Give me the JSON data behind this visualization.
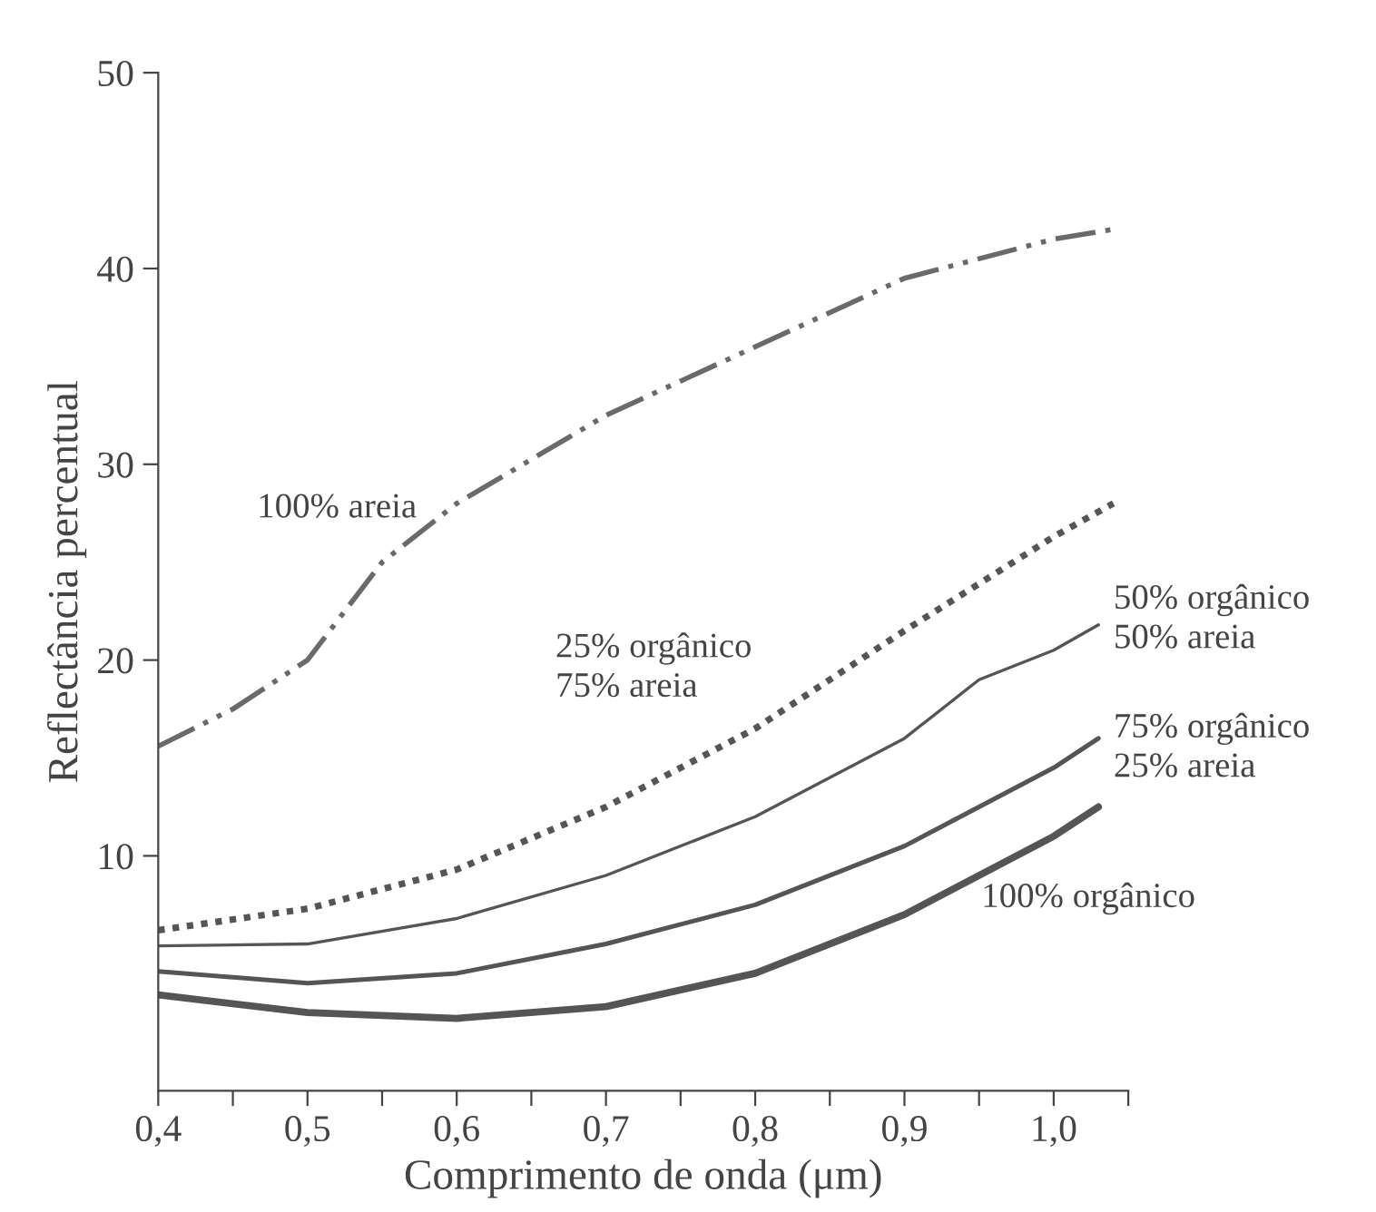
{
  "chart_data": {
    "type": "line",
    "xlabel": "Comprimento de onda (μm)",
    "ylabel": "Reflectância percentual",
    "xlim": [
      0.4,
      1.05
    ],
    "ylim": [
      -2,
      50
    ],
    "xticks": [
      {
        "value": 0.4,
        "label": "0,4"
      },
      {
        "value": 0.45,
        "label": null
      },
      {
        "value": 0.5,
        "label": "0,5"
      },
      {
        "value": 0.55,
        "label": null
      },
      {
        "value": 0.6,
        "label": "0,6"
      },
      {
        "value": 0.65,
        "label": null
      },
      {
        "value": 0.7,
        "label": "0,7"
      },
      {
        "value": 0.75,
        "label": null
      },
      {
        "value": 0.8,
        "label": "0,8"
      },
      {
        "value": 0.85,
        "label": null
      },
      {
        "value": 0.9,
        "label": "0,9"
      },
      {
        "value": 0.95,
        "label": null
      },
      {
        "value": 1.0,
        "label": "1,0"
      },
      {
        "value": 1.05,
        "label": null
      }
    ],
    "yticks": [
      10,
      20,
      30,
      40,
      50
    ],
    "grid": false,
    "legend": false,
    "series": [
      {
        "name": "100% areia",
        "color": "#6a6a6a",
        "line_style": "dashed",
        "x": [
          0.4,
          0.45,
          0.5,
          0.55,
          0.6,
          0.7,
          0.8,
          0.9,
          1.0,
          1.04
        ],
        "values": [
          15.6,
          17.5,
          20,
          25,
          28,
          32.5,
          36,
          39.5,
          41.5,
          42
        ]
      },
      {
        "name": "25% orgânico\n75% areia",
        "color": "#555555",
        "line_style": "dotted",
        "x": [
          0.4,
          0.5,
          0.6,
          0.7,
          0.8,
          0.9,
          1.0,
          1.04
        ],
        "values": [
          6.2,
          7.3,
          9.3,
          12.5,
          16.5,
          21.5,
          26.3,
          28
        ]
      },
      {
        "name": "50% orgânico\n50% areia",
        "color": "#555555",
        "line_style": "solid",
        "x": [
          0.4,
          0.5,
          0.6,
          0.7,
          0.8,
          0.9,
          0.95,
          1.0,
          1.03
        ],
        "values": [
          5.4,
          5.5,
          6.8,
          9,
          12,
          16,
          19,
          20.5,
          21.8
        ]
      },
      {
        "name": "75% orgânico\n25% areia",
        "color": "#555555",
        "line_style": "solid",
        "x": [
          0.4,
          0.5,
          0.6,
          0.7,
          0.8,
          0.9,
          1.0,
          1.03
        ],
        "values": [
          4.1,
          3.5,
          4,
          5.5,
          7.5,
          10.5,
          14.5,
          16
        ]
      },
      {
        "name": "100% orgânico",
        "color": "#555555",
        "line_style": "solid",
        "x": [
          0.4,
          0.5,
          0.6,
          0.7,
          0.8,
          0.9,
          1.0,
          1.03
        ],
        "values": [
          2.9,
          2.0,
          1.7,
          2.3,
          4,
          7,
          11,
          12.5
        ]
      }
    ]
  }
}
